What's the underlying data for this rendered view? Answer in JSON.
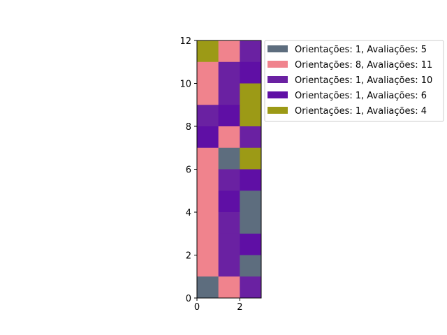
{
  "chart_data": {
    "type": "heatmap",
    "xlim": [
      0,
      3
    ],
    "ylim": [
      0,
      12
    ],
    "x_ticks": [
      0,
      2
    ],
    "y_ticks": [
      0,
      2,
      4,
      6,
      8,
      10,
      12
    ],
    "grid": false,
    "legend_placement": "outside-top-right",
    "categories": [
      {
        "id": "A",
        "label": "Orientações: 1, Avaliações: 5",
        "color": "#5d6d7e"
      },
      {
        "id": "B",
        "label": "Orientações: 8, Avaliações: 11",
        "color": "#f0838d"
      },
      {
        "id": "C",
        "label": "Orientações: 1, Avaliações: 10",
        "color": "#6a21a2"
      },
      {
        "id": "D",
        "label": "Orientações: 1, Avaliações: 6",
        "color": "#5f0fa5"
      },
      {
        "id": "E",
        "label": "Orientações: 1, Avaliações: 4",
        "color": "#9c9a16"
      }
    ],
    "grid_rows_top_to_bottom": [
      [
        "E",
        "B",
        "C"
      ],
      [
        "B",
        "C",
        "D"
      ],
      [
        "B",
        "C",
        "E"
      ],
      [
        "C",
        "D",
        "E"
      ],
      [
        "D",
        "B",
        "C"
      ],
      [
        "B",
        "A",
        "E"
      ],
      [
        "B",
        "C",
        "D"
      ],
      [
        "B",
        "D",
        "A"
      ],
      [
        "B",
        "C",
        "A"
      ],
      [
        "B",
        "C",
        "D"
      ],
      [
        "B",
        "C",
        "A"
      ],
      [
        "A",
        "B",
        "C"
      ]
    ]
  }
}
